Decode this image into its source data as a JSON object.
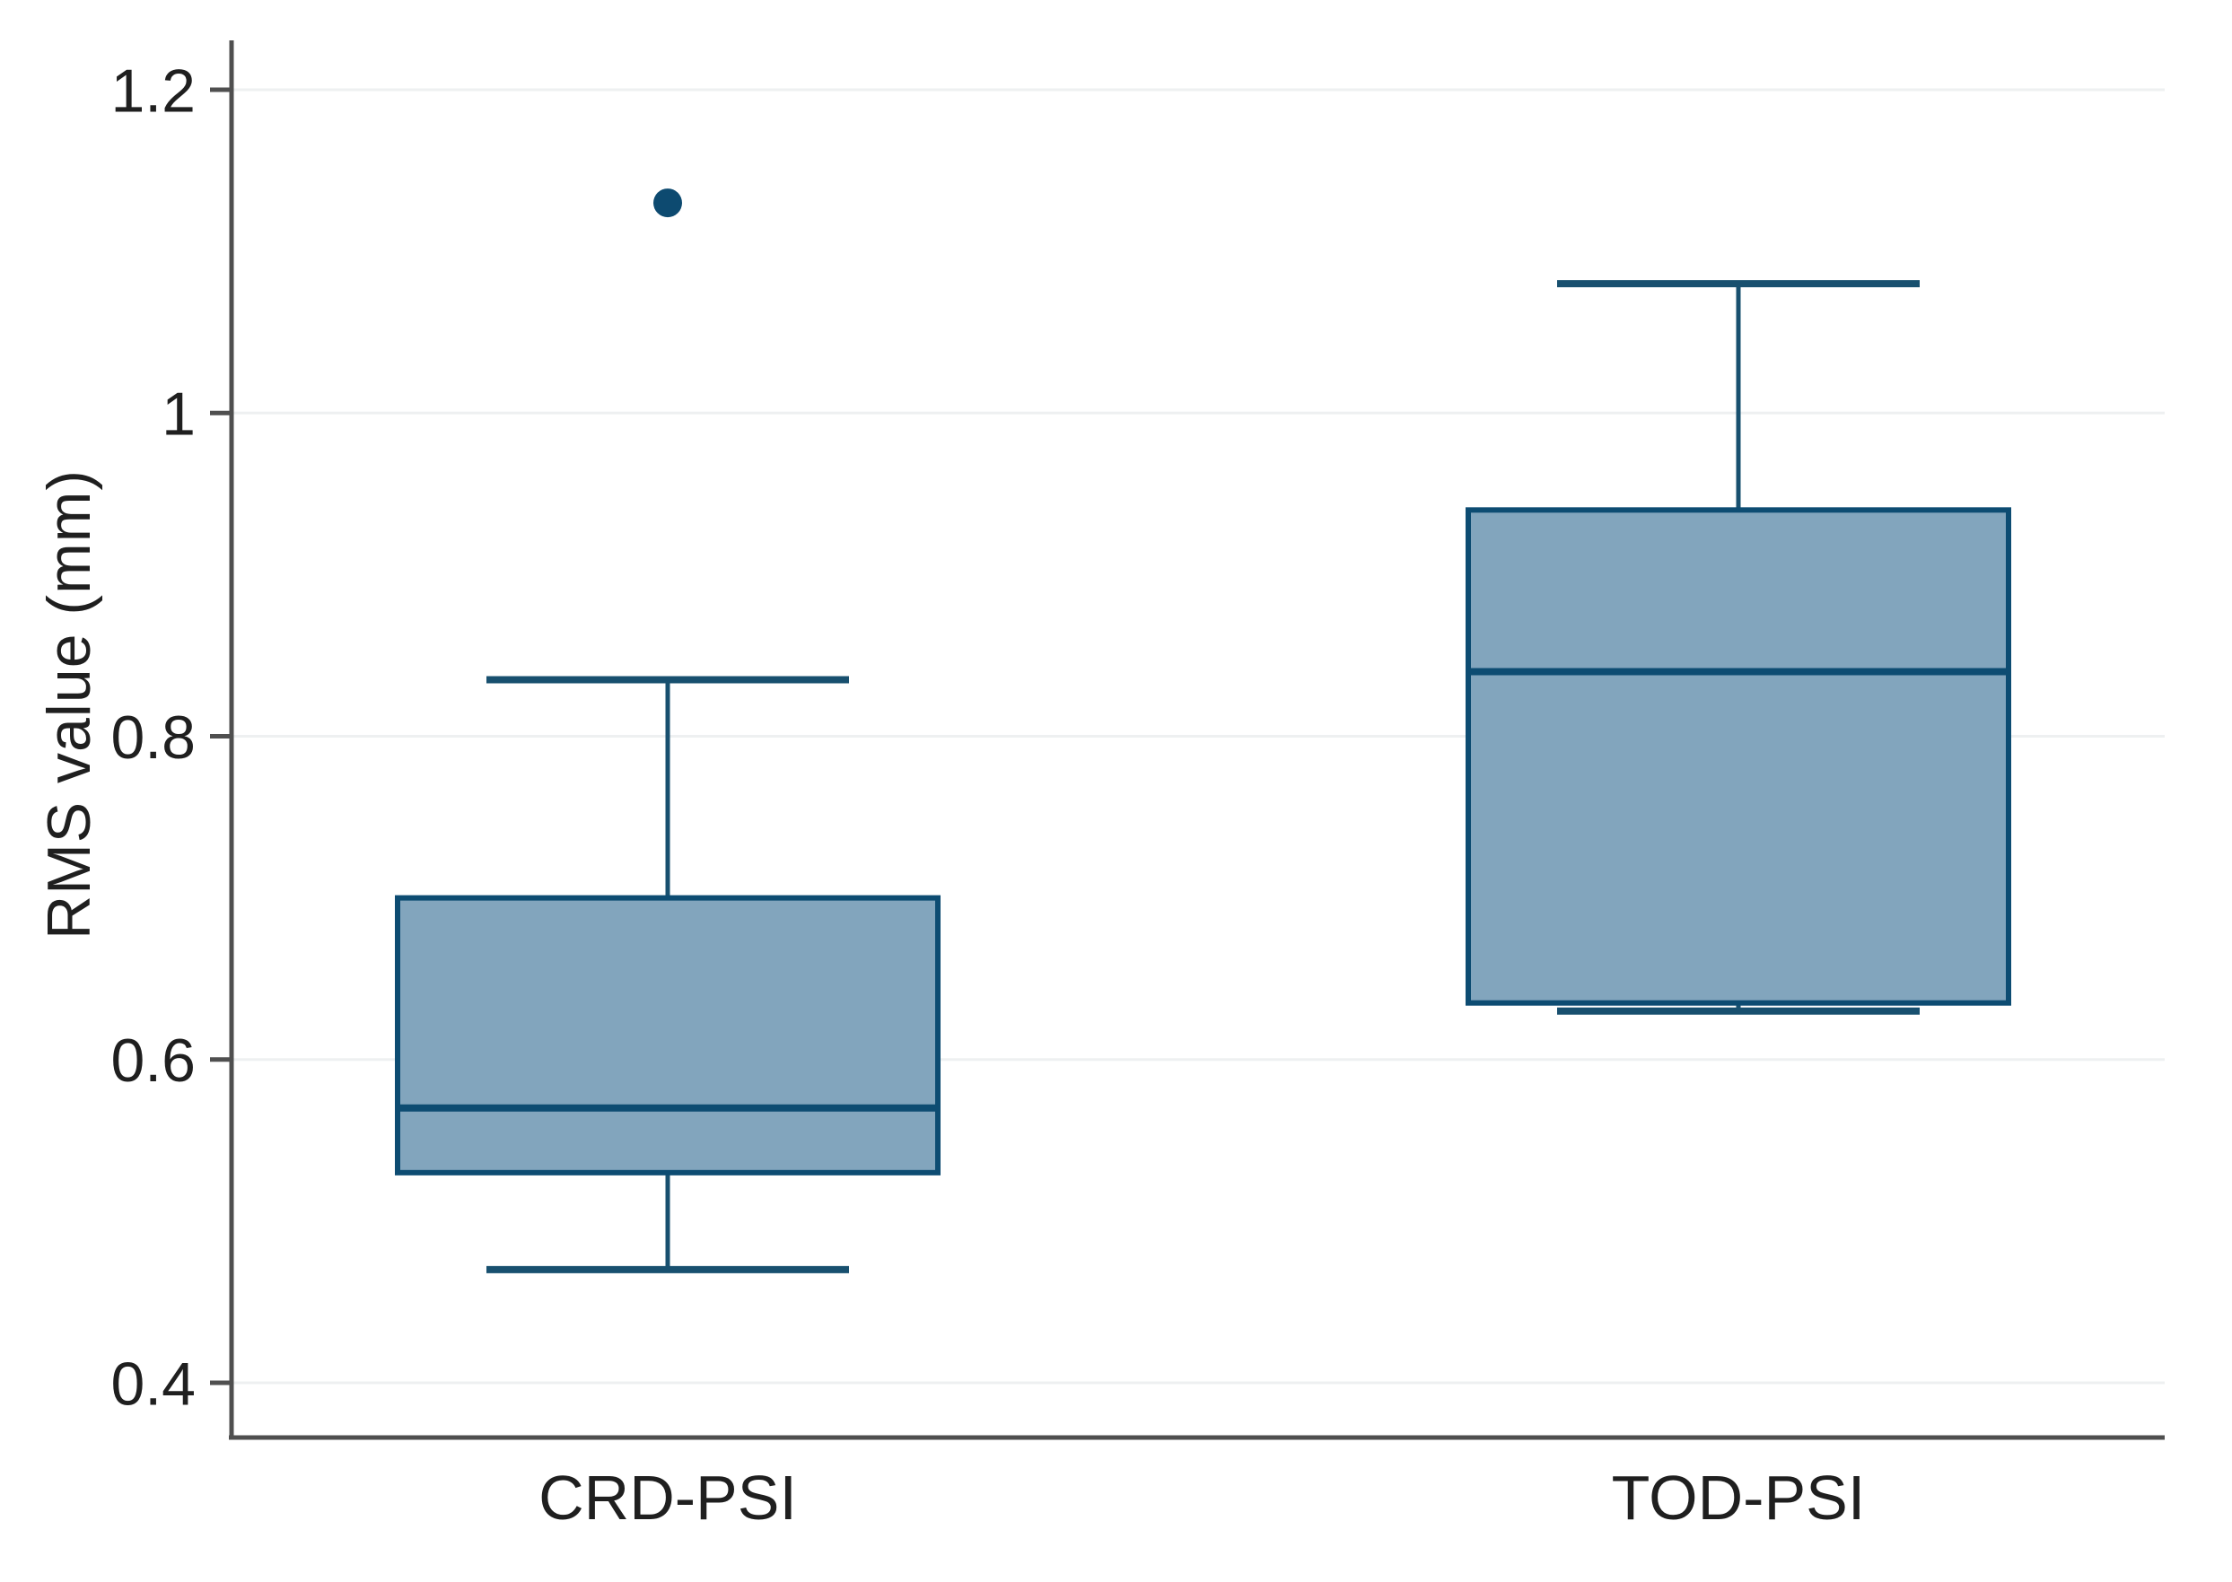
{
  "figure": {
    "background": "#ffffff"
  },
  "chart_data": {
    "type": "box",
    "title": "",
    "xlabel": "",
    "ylabel": "RMS value (mm)",
    "ylim": [
      0.35,
      1.25
    ],
    "grid": true,
    "legend_position": "none",
    "yticks": [
      {
        "value": 0.4,
        "label": "0.4"
      },
      {
        "value": 0.6,
        "label": "0.6"
      },
      {
        "value": 0.8,
        "label": "0.8"
      },
      {
        "value": 1.0,
        "label": "1"
      },
      {
        "value": 1.2,
        "label": "1.2"
      }
    ],
    "categories": [
      "CRD-PSI",
      "TOD-PSI"
    ],
    "series": [
      {
        "name": "CRD-PSI",
        "whisker_low": 0.47,
        "q1": 0.53,
        "median": 0.57,
        "q3": 0.7,
        "whisker_high": 0.835,
        "outliers": [
          1.13
        ]
      },
      {
        "name": "TOD-PSI",
        "whisker_low": 0.63,
        "q1": 0.635,
        "median": 0.84,
        "q3": 0.94,
        "whisker_high": 1.08,
        "outliers": []
      }
    ],
    "colors": {
      "box_fill": "#82a5bd",
      "box_border": "#0d4c72",
      "median": "#0d4c72",
      "whisker": "#18506f",
      "outlier": "#0d4a70",
      "axis": "#4f4f4f",
      "gridline": "#eef0f1",
      "text": "#1f1f1f"
    }
  }
}
